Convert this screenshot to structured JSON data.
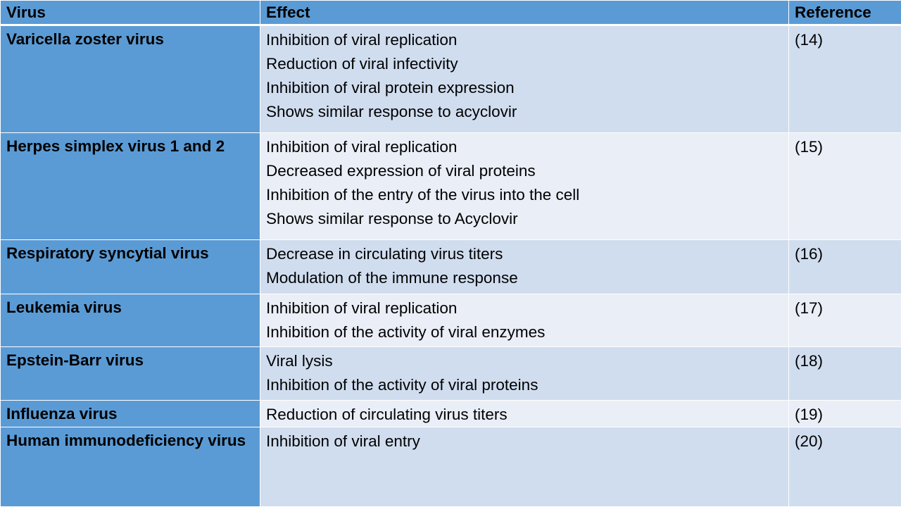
{
  "table": {
    "headers": {
      "virus": "Virus",
      "effect": "Effect",
      "reference": "Reference"
    },
    "rows": [
      {
        "virus": "Varicella zoster virus",
        "effects": [
          "Inhibition of viral replication",
          "Reduction of viral infectivity",
          "Inhibition of viral protein expression",
          "Shows similar response to acyclovir"
        ],
        "reference": "(14)"
      },
      {
        "virus": "Herpes simplex virus 1 and 2",
        "effects": [
          "Inhibition of viral replication",
          "Decreased expression of viral proteins",
          "Inhibition of the entry of the virus into the cell",
          "Shows similar response to Acyclovir"
        ],
        "reference": "(15)"
      },
      {
        "virus": "Respiratory syncytial virus",
        "effects": [
          "Decrease in circulating virus titers",
          "Modulation of the immune response"
        ],
        "reference": "(16)"
      },
      {
        "virus": "Leukemia virus",
        "effects": [
          "Inhibition of viral replication",
          "Inhibition of the activity of viral enzymes"
        ],
        "reference": "(17)"
      },
      {
        "virus": "Epstein-Barr virus",
        "effects": [
          "Viral lysis",
          "Inhibition of the activity of viral proteins"
        ],
        "reference": "(18)"
      },
      {
        "virus": "Influenza virus",
        "effects": [
          "Reduction of circulating virus titers"
        ],
        "reference": "(19)"
      },
      {
        "virus": "Human immunodeficiency virus",
        "effects": [
          "Inhibition of viral entry"
        ],
        "reference": "(20)"
      }
    ]
  },
  "colors": {
    "header_fill": "#5b9bd5",
    "band_dark": "#d0ddef",
    "band_light": "#e9eef7",
    "grid_lines": "#ffffff"
  }
}
